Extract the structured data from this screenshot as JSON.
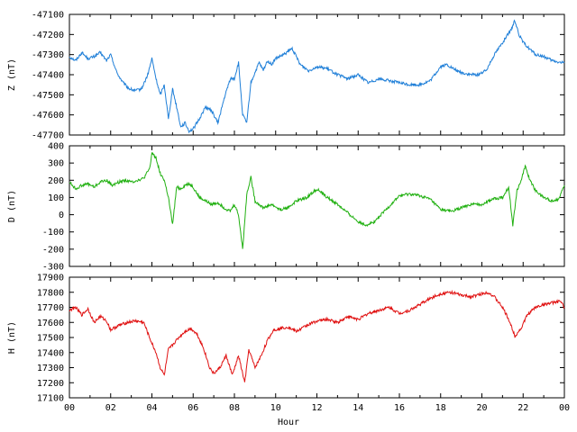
{
  "chart_data": [
    {
      "type": "line",
      "ylabel": "Z (nT)",
      "ylim": [
        -47700,
        -47100
      ],
      "yticks": [
        "-47100",
        "-47200",
        "-47300",
        "-47400",
        "-47500",
        "-47600",
        "-47700"
      ],
      "color": "#1f7fd8",
      "series": [
        {
          "x": [
            0,
            0.3,
            0.6,
            0.9,
            1.2,
            1.5,
            1.8,
            2.0,
            2.3,
            2.6,
            2.9,
            3.2,
            3.5,
            3.8,
            4.0,
            4.2,
            4.4,
            4.6,
            4.8,
            5.0,
            5.2,
            5.4,
            5.6,
            5.8,
            6.0,
            6.3,
            6.6,
            6.9,
            7.2,
            7.5,
            7.8,
            8.0,
            8.2,
            8.4,
            8.6,
            8.8,
            9.0,
            9.2,
            9.4,
            9.6,
            9.8,
            10.0,
            10.4,
            10.8,
            11.2,
            11.6,
            12.0,
            12.5,
            13.0,
            13.5,
            14.0,
            14.5,
            15.0,
            15.5,
            16.0,
            16.5,
            17.0,
            17.5,
            18.0,
            18.3,
            18.6,
            19.0,
            19.4,
            19.8,
            20.2,
            20.6,
            21.0,
            21.4,
            21.6,
            21.8,
            22.0,
            22.3,
            22.6,
            23.0,
            23.4,
            23.8,
            24.0
          ],
          "values": [
            -47310,
            -47330,
            -47290,
            -47320,
            -47310,
            -47290,
            -47330,
            -47300,
            -47390,
            -47440,
            -47470,
            -47480,
            -47470,
            -47400,
            -47320,
            -47420,
            -47500,
            -47450,
            -47620,
            -47470,
            -47560,
            -47660,
            -47640,
            -47680,
            -47670,
            -47620,
            -47560,
            -47580,
            -47640,
            -47520,
            -47420,
            -47420,
            -47340,
            -47600,
            -47640,
            -47440,
            -47390,
            -47340,
            -47380,
            -47330,
            -47350,
            -47320,
            -47300,
            -47270,
            -47350,
            -47380,
            -47360,
            -47370,
            -47400,
            -47420,
            -47400,
            -47440,
            -47420,
            -47430,
            -47440,
            -47450,
            -47450,
            -47430,
            -47360,
            -47350,
            -47370,
            -47390,
            -47400,
            -47400,
            -47380,
            -47300,
            -47240,
            -47180,
            -47130,
            -47200,
            -47240,
            -47270,
            -47300,
            -47310,
            -47330,
            -47340,
            -47340
          ]
        }
      ]
    },
    {
      "type": "line",
      "ylabel": "D (nT)",
      "ylim": [
        -300,
        400
      ],
      "yticks": [
        "400",
        "300",
        "200",
        "100",
        "0",
        "-100",
        "-200",
        "-300"
      ],
      "color": "#20b010",
      "series": [
        {
          "x": [
            0,
            0.3,
            0.6,
            0.9,
            1.2,
            1.5,
            1.8,
            2.1,
            2.4,
            2.7,
            3.0,
            3.3,
            3.6,
            3.9,
            4.0,
            4.2,
            4.4,
            4.6,
            4.8,
            5.0,
            5.2,
            5.4,
            5.6,
            5.8,
            6.0,
            6.3,
            6.6,
            6.9,
            7.2,
            7.5,
            7.8,
            8.0,
            8.2,
            8.4,
            8.6,
            8.8,
            9.0,
            9.4,
            9.8,
            10.2,
            10.6,
            11.0,
            11.5,
            12.0,
            12.5,
            13.0,
            13.5,
            14.0,
            14.4,
            14.8,
            15.2,
            15.6,
            16.0,
            16.5,
            17.0,
            17.5,
            18.0,
            18.5,
            19.0,
            19.5,
            20.0,
            20.5,
            21.0,
            21.3,
            21.5,
            21.7,
            21.9,
            22.1,
            22.3,
            22.6,
            23.0,
            23.4,
            23.7,
            24.0
          ],
          "values": [
            190,
            150,
            170,
            180,
            160,
            190,
            200,
            170,
            190,
            200,
            190,
            200,
            210,
            270,
            360,
            330,
            240,
            200,
            100,
            -60,
            160,
            150,
            170,
            180,
            160,
            100,
            80,
            60,
            70,
            40,
            20,
            60,
            0,
            -200,
            120,
            220,
            80,
            40,
            60,
            30,
            40,
            80,
            100,
            150,
            100,
            60,
            10,
            -40,
            -60,
            -40,
            10,
            60,
            110,
            120,
            110,
            90,
            30,
            20,
            40,
            60,
            60,
            90,
            100,
            160,
            -60,
            140,
            200,
            280,
            210,
            140,
            100,
            80,
            90,
            170
          ]
        }
      ]
    },
    {
      "type": "line",
      "ylabel": "H (nT)",
      "xlabel": "Hour",
      "ylim": [
        17100,
        17900
      ],
      "yticks": [
        "17900",
        "17800",
        "17700",
        "17600",
        "17500",
        "17400",
        "17300",
        "17200",
        "17100"
      ],
      "xticks": [
        "00",
        "02",
        "04",
        "06",
        "08",
        "10",
        "12",
        "14",
        "16",
        "18",
        "20",
        "22",
        "00"
      ],
      "color": "#e01010",
      "series": [
        {
          "x": [
            0,
            0.3,
            0.6,
            0.9,
            1.2,
            1.5,
            1.8,
            2.0,
            2.4,
            2.8,
            3.2,
            3.6,
            3.8,
            4.0,
            4.2,
            4.4,
            4.6,
            4.8,
            5.0,
            5.3,
            5.6,
            5.9,
            6.2,
            6.5,
            6.8,
            7.0,
            7.3,
            7.6,
            7.9,
            8.2,
            8.5,
            8.7,
            9.0,
            9.3,
            9.6,
            9.9,
            10.2,
            10.6,
            11.0,
            11.5,
            12.0,
            12.5,
            13.0,
            13.5,
            14.0,
            14.5,
            15.0,
            15.5,
            16.0,
            16.5,
            17.0,
            17.5,
            18.0,
            18.5,
            19.0,
            19.5,
            20.0,
            20.3,
            20.6,
            21.0,
            21.3,
            21.6,
            21.9,
            22.2,
            22.6,
            23.0,
            23.4,
            23.8,
            24.0
          ],
          "values": [
            17680,
            17700,
            17650,
            17690,
            17600,
            17640,
            17610,
            17550,
            17580,
            17600,
            17610,
            17600,
            17530,
            17460,
            17400,
            17300,
            17250,
            17420,
            17450,
            17500,
            17540,
            17560,
            17520,
            17430,
            17300,
            17260,
            17300,
            17380,
            17250,
            17380,
            17200,
            17420,
            17300,
            17380,
            17480,
            17550,
            17560,
            17570,
            17540,
            17580,
            17610,
            17620,
            17600,
            17640,
            17620,
            17660,
            17680,
            17700,
            17660,
            17680,
            17720,
            17760,
            17790,
            17800,
            17780,
            17770,
            17790,
            17800,
            17770,
            17700,
            17620,
            17510,
            17560,
            17650,
            17700,
            17720,
            17730,
            17740,
            17700
          ]
        }
      ]
    }
  ]
}
